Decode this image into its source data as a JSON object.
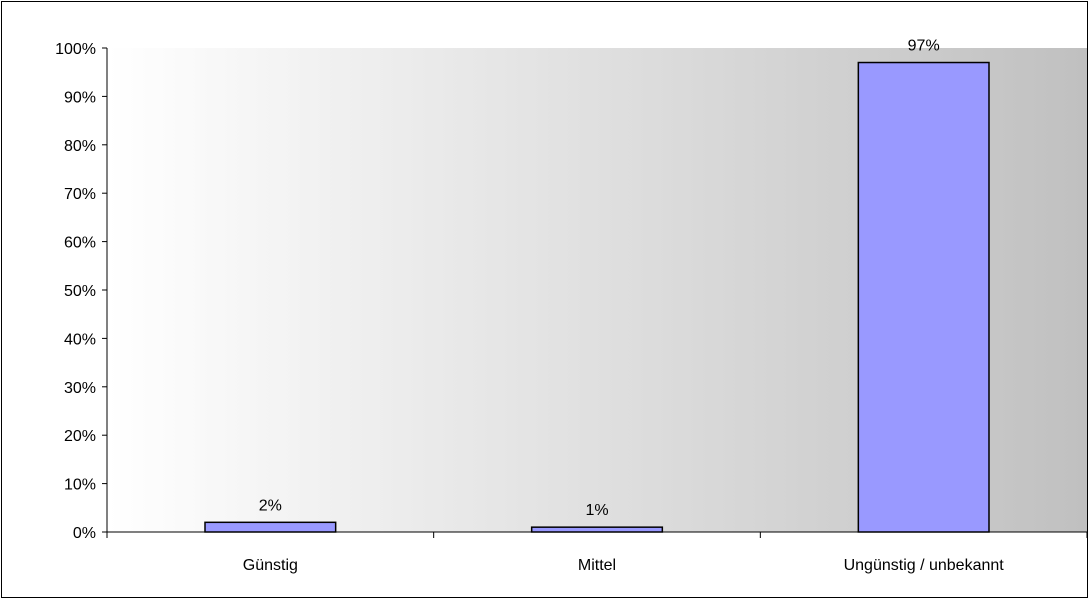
{
  "chart_data": {
    "type": "bar",
    "categories": [
      "Günstig",
      "Mittel",
      "Ungünstig / unbekannt"
    ],
    "values": [
      2,
      1,
      97
    ],
    "data_labels": [
      "2%",
      "1%",
      "97%"
    ],
    "ylim": [
      0,
      100
    ],
    "ytick_values": [
      0,
      10,
      20,
      30,
      40,
      50,
      60,
      70,
      80,
      90,
      100
    ],
    "ytick_labels": [
      "0%",
      "10%",
      "20%",
      "30%",
      "40%",
      "50%",
      "60%",
      "70%",
      "80%",
      "90%",
      "100%"
    ],
    "title": "",
    "xlabel": "",
    "ylabel": "",
    "grid": false,
    "legend": "none",
    "colors": {
      "bar_fill": "#9999ff",
      "bar_stroke": "#000000",
      "plot_gradient_start": "#ffffff",
      "plot_gradient_end": "#c0c0c0",
      "axis": "#000000"
    }
  }
}
